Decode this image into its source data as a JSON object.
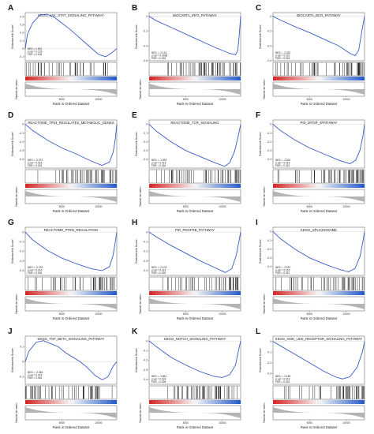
{
  "figure": {
    "ylabel_es": "Enrichment Score",
    "ylabel_metric": "Ranked list metric",
    "xlabel": "Rank in Ordered Dataset",
    "x_ticks": [
      5000,
      10000
    ],
    "colors": {
      "curve": "#3a5bc7",
      "hit": "#111111",
      "grid": "#c9c9c9",
      "frame": "#555555",
      "metric": "#b4b4b4",
      "red": "#d62a2a",
      "blue": "#2a5fc9"
    }
  },
  "chart_data": [
    {
      "panel": "A",
      "type": "line",
      "title": "KEGG_JAK_STAT_SIGNALING_PATHWAY",
      "stats": [
        "NES = 1.931",
        "p.val = 0.103",
        "FDR = 0.126"
      ],
      "x": [
        0,
        300,
        1000,
        2000,
        3000,
        4000,
        5000,
        6000,
        7000,
        8000,
        9000,
        10000,
        11000,
        11800,
        12500
      ],
      "y": [
        0,
        0.18,
        0.32,
        0.42,
        0.43,
        0.39,
        0.32,
        0.25,
        0.17,
        0.09,
        0.01,
        -0.07,
        -0.1,
        -0.05,
        0
      ],
      "es_ticks": [
        -0.1,
        0,
        0.1,
        0.2,
        0.3,
        0.4
      ],
      "es_range": [
        -0.15,
        0.45
      ]
    },
    {
      "panel": "B",
      "type": "line",
      "title": "BIOCARTA_IRF2_PATHWAY",
      "stats": [
        "NES = -2.134",
        "p.val = 0.0038",
        "FDR = 0.016"
      ],
      "x": [
        0,
        1000,
        3000,
        5000,
        7000,
        9000,
        11000,
        11800,
        12100,
        12300,
        12500
      ],
      "y": [
        0,
        -0.06,
        -0.15,
        -0.24,
        -0.33,
        -0.42,
        -0.5,
        -0.52,
        -0.46,
        -0.26,
        0
      ],
      "es_ticks": [
        -0.6,
        -0.4,
        -0.2,
        0
      ],
      "es_range": [
        -0.6,
        0.05
      ]
    },
    {
      "panel": "C",
      "type": "line",
      "title": "BIOCARTA_BCR_PATHWAY",
      "stats": [
        "NES = -2.432",
        "p.val = 0.002",
        "FDR = 0.016"
      ],
      "x": [
        0,
        1000,
        3000,
        5000,
        7000,
        9000,
        10500,
        11200,
        11700,
        12100,
        12500
      ],
      "y": [
        0,
        -0.05,
        -0.14,
        -0.22,
        -0.31,
        -0.4,
        -0.5,
        -0.53,
        -0.46,
        -0.22,
        0
      ],
      "es_ticks": [
        -0.6,
        -0.4,
        -0.2,
        0
      ],
      "es_range": [
        -0.6,
        0.05
      ]
    },
    {
      "panel": "D",
      "type": "line",
      "title": "REACTOME_TP53_REGULATES_METABOLIC_GENES",
      "stats": [
        "NES = -2.072",
        "p.val = 0.016",
        "FDR = 0.018"
      ],
      "x": [
        0,
        1000,
        3000,
        5000,
        7000,
        9000,
        10500,
        11500,
        12000,
        12300,
        12500
      ],
      "y": [
        0,
        -0.07,
        -0.18,
        -0.27,
        -0.34,
        -0.42,
        -0.47,
        -0.43,
        -0.32,
        -0.17,
        0
      ],
      "es_ticks": [
        -0.4,
        -0.3,
        -0.2,
        -0.1,
        0
      ],
      "es_range": [
        -0.5,
        0.05
      ]
    },
    {
      "panel": "E",
      "type": "line",
      "title": "REACTOME_TCR_SIGNALING",
      "stats": [
        "NES = -1.993",
        "p.val = 0.016",
        "FDR = 0.016"
      ],
      "x": [
        0,
        1000,
        3000,
        5000,
        7000,
        9000,
        10300,
        11000,
        11700,
        12200,
        12500
      ],
      "y": [
        0,
        -0.08,
        -0.2,
        -0.3,
        -0.37,
        -0.44,
        -0.48,
        -0.44,
        -0.3,
        -0.12,
        0
      ],
      "es_ticks": [
        -0.4,
        -0.3,
        -0.2,
        -0.1,
        0
      ],
      "es_range": [
        -0.5,
        0.05
      ]
    },
    {
      "panel": "F",
      "type": "line",
      "title": "PID_MTOR_4PATHWAY",
      "stats": [
        "NES = -2.004",
        "p.val = 0.016",
        "FDR = 0.022"
      ],
      "x": [
        0,
        1000,
        3000,
        5000,
        7000,
        9000,
        10500,
        11300,
        11900,
        12300,
        12500
      ],
      "y": [
        0,
        -0.07,
        -0.18,
        -0.27,
        -0.34,
        -0.41,
        -0.45,
        -0.41,
        -0.29,
        -0.12,
        0
      ],
      "es_ticks": [
        -0.4,
        -0.3,
        -0.2,
        -0.1,
        0
      ],
      "es_range": [
        -0.5,
        0.05
      ]
    },
    {
      "panel": "G",
      "type": "line",
      "title": "REACTOME_PTEN_REGULATION",
      "stats": [
        "NES = -2.076",
        "p.val = 0.016",
        "FDR = 0.016"
      ],
      "x": [
        0,
        1000,
        3000,
        5000,
        7000,
        9000,
        10500,
        11500,
        12000,
        12300,
        12500
      ],
      "y": [
        0,
        -0.08,
        -0.19,
        -0.27,
        -0.33,
        -0.38,
        -0.4,
        -0.36,
        -0.24,
        -0.1,
        0
      ],
      "es_ticks": [
        -0.4,
        -0.3,
        -0.2,
        -0.1,
        0
      ],
      "es_range": [
        -0.45,
        0.05
      ]
    },
    {
      "panel": "H",
      "type": "line",
      "title": "PID_PDGFRB_PATHWAY",
      "stats": [
        "NES = -2.103",
        "p.val = 0.016",
        "FDR = 0.016"
      ],
      "x": [
        0,
        1000,
        3000,
        5000,
        7000,
        9000,
        10400,
        11300,
        11900,
        12300,
        12500
      ],
      "y": [
        0,
        -0.05,
        -0.14,
        -0.22,
        -0.3,
        -0.37,
        -0.42,
        -0.38,
        -0.24,
        -0.08,
        0
      ],
      "es_ticks": [
        -0.4,
        -0.3,
        -0.2,
        -0.1,
        0
      ],
      "es_range": [
        -0.45,
        0.05
      ]
    },
    {
      "panel": "I",
      "type": "line",
      "title": "KEGG_SPLICEOSOME",
      "stats": [
        "NES = -2.222",
        "p.val = 0.016",
        "FDR = 0.031"
      ],
      "x": [
        0,
        1000,
        3000,
        5000,
        7000,
        9000,
        10300,
        11200,
        11900,
        12300,
        12500
      ],
      "y": [
        0,
        -0.08,
        -0.2,
        -0.3,
        -0.37,
        -0.43,
        -0.46,
        -0.42,
        -0.28,
        -0.1,
        0
      ],
      "es_ticks": [
        -0.4,
        -0.3,
        -0.2,
        -0.1,
        0
      ],
      "es_range": [
        -0.5,
        0.05
      ]
    },
    {
      "panel": "J",
      "type": "line",
      "title": "KEGG_TGF_BETA_SIGNALING_PATHWAY",
      "stats": [
        "NES = -2.364",
        "p.val = 0.016",
        "FDR = 0.016"
      ],
      "x": [
        0,
        500,
        1500,
        2500,
        3500,
        4500,
        5500,
        6500,
        7500,
        8500,
        9500,
        10500,
        11300,
        12000,
        12500
      ],
      "y": [
        0,
        0.07,
        0.13,
        0.14,
        0.12,
        0.1,
        0.06,
        0.03,
        0.0,
        -0.04,
        -0.09,
        -0.12,
        -0.1,
        -0.03,
        0
      ],
      "es_ticks": [
        -0.1,
        0,
        0.1
      ],
      "es_range": [
        -0.15,
        0.17
      ]
    },
    {
      "panel": "K",
      "type": "line",
      "title": "KEGG_NOTCH_SIGNALING_PATHWAY",
      "stats": [
        "NES = -1.861",
        "p.val = 0.024",
        "FDR = 0.028"
      ],
      "x": [
        0,
        1000,
        3000,
        5000,
        7000,
        9000,
        10000,
        11000,
        11800,
        12200,
        12500
      ],
      "y": [
        0,
        -0.06,
        -0.17,
        -0.25,
        -0.32,
        -0.37,
        -0.38,
        -0.35,
        -0.25,
        -0.1,
        0
      ],
      "es_ticks": [
        -0.4,
        -0.3,
        -0.2,
        -0.1,
        0
      ],
      "es_range": [
        -0.45,
        0.05
      ]
    },
    {
      "panel": "L",
      "type": "line",
      "title": "KEGG_NOD_LIKE_RECEPTOR_SIGNALING_PATHWAY",
      "stats": [
        "NES = -2.185",
        "p.val = 0.013",
        "FDR = 0.019"
      ],
      "x": [
        0,
        1000,
        3000,
        5000,
        7000,
        8500,
        9500,
        10500,
        11500,
        12200,
        12500
      ],
      "y": [
        0,
        -0.04,
        -0.12,
        -0.2,
        -0.28,
        -0.33,
        -0.35,
        -0.33,
        -0.24,
        -0.1,
        0
      ],
      "es_ticks": [
        -0.3,
        -0.2,
        -0.1,
        0
      ],
      "es_range": [
        -0.4,
        0.05
      ]
    }
  ]
}
